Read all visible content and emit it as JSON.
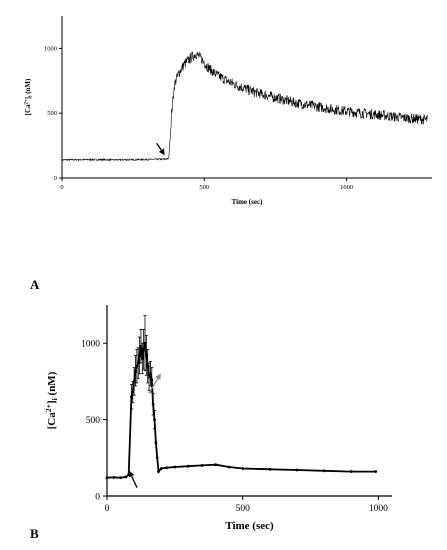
{
  "figure": {
    "panels": [
      {
        "label": "A"
      },
      {
        "label": "B"
      }
    ]
  },
  "chart_data": [
    {
      "type": "line",
      "panel": "A",
      "xlabel": "Time (sec)",
      "ylabel": "[Ca2+]i (nM)",
      "ylabel_parts": {
        "main": "[Ca",
        "sup": "2+",
        "close": "]",
        "sub": "i",
        "unit": " (nM)"
      },
      "xlim": [
        0,
        1300
      ],
      "ylim": [
        0,
        1250
      ],
      "xticks": [
        0,
        500,
        1000
      ],
      "yticks": [
        0,
        500,
        1000
      ],
      "grid": false,
      "noise_amplitude": 40,
      "series": [
        {
          "x": [
            0,
            100,
            200,
            300,
            360,
            375,
            385,
            395,
            410,
            430,
            450,
            470,
            490,
            510,
            540,
            580,
            620,
            680,
            750,
            820,
            900,
            980,
            1060,
            1140,
            1220,
            1285
          ],
          "y": [
            140,
            142,
            140,
            143,
            145,
            150,
            500,
            720,
            810,
            880,
            920,
            960,
            920,
            860,
            800,
            750,
            710,
            660,
            620,
            580,
            550,
            520,
            500,
            480,
            460,
            450
          ]
        }
      ],
      "annotations": [
        {
          "type": "arrow",
          "color": "#000000",
          "x": 375,
          "y": 145
        }
      ]
    },
    {
      "type": "line",
      "panel": "B",
      "xlabel": "Time (sec)",
      "ylabel": "[Ca2+]i (nM)",
      "ylabel_parts": {
        "main": "[Ca",
        "sup": "2+",
        "close": "]",
        "sub": "i",
        "unit": " (nM)"
      },
      "xlim": [
        0,
        1050
      ],
      "ylim": [
        0,
        1250
      ],
      "xticks": [
        0,
        500,
        1000
      ],
      "yticks": [
        0,
        500,
        1000
      ],
      "grid": false,
      "series": [
        {
          "x": [
            0,
            25,
            50,
            70,
            80,
            90,
            95,
            100,
            105,
            110,
            115,
            120,
            125,
            130,
            135,
            140,
            145,
            150,
            155,
            160,
            165,
            170,
            175,
            180,
            185,
            190,
            200,
            220,
            250,
            300,
            350,
            400,
            450,
            500,
            600,
            700,
            800,
            900,
            990
          ],
          "y": [
            120,
            122,
            120,
            125,
            140,
            650,
            680,
            750,
            820,
            850,
            870,
            920,
            980,
            900,
            960,
            1000,
            920,
            850,
            780,
            800,
            760,
            600,
            500,
            350,
            250,
            160,
            180,
            185,
            190,
            195,
            200,
            205,
            190,
            180,
            175,
            170,
            165,
            160,
            160
          ],
          "error": [
            0,
            0,
            0,
            0,
            0,
            80,
            70,
            90,
            100,
            110,
            100,
            120,
            110,
            100,
            130,
            180,
            130,
            110,
            90,
            80,
            80,
            70,
            60,
            0,
            0,
            0,
            0,
            0,
            0,
            0,
            0,
            0,
            0,
            0,
            0,
            0,
            0,
            0,
            0
          ]
        }
      ],
      "annotations": [
        {
          "type": "arrow",
          "color": "#000000",
          "x": 70,
          "y": 120
        },
        {
          "type": "arrow",
          "color": "#888888",
          "x": 180,
          "y": 750
        }
      ]
    }
  ]
}
